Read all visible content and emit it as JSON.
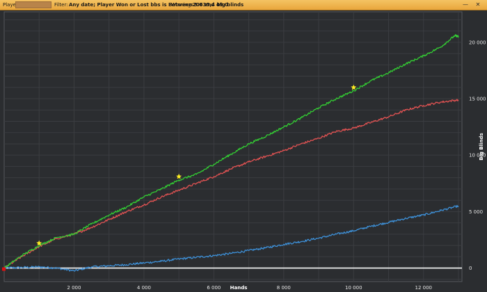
{
  "header": {
    "player_label": "Player",
    "filter_label": "Filter:",
    "filter_value": "Any date; Player Won or Lost bbs is Between 3.0 and 49.0",
    "winnings_label": "Winnings:",
    "winnings_value": "20635,4 big blinds",
    "minimize_icon": "minimize-icon",
    "close_icon": "close-icon"
  },
  "colors": {
    "background": "#2b2d30",
    "grid": "#3b3d41",
    "green": "#33cc33",
    "red": "#e05252",
    "blue": "#3d8fd6",
    "zero_line": "#ffffff",
    "star": "#ffee22",
    "start_marker": "#dd1111"
  },
  "chart_data": {
    "type": "line",
    "title": "",
    "xlabel": "Hands",
    "ylabel": "Big Blinds",
    "xlim": [
      0,
      13100
    ],
    "ylim": [
      -1200,
      22700
    ],
    "x_ticks": [
      2000,
      4000,
      6000,
      8000,
      10000,
      12000
    ],
    "x_tick_labels": [
      "2 000",
      "4 000",
      "6 000",
      "8 000",
      "10 000",
      "12 000"
    ],
    "y_ticks": [
      0,
      5000,
      10000,
      15000,
      20000
    ],
    "y_tick_labels": [
      "0",
      "5 000",
      "10 000",
      "15 000",
      "20 000"
    ],
    "grid": true,
    "legend": "none",
    "series": [
      {
        "color": "green",
        "x": [
          0,
          500,
          1000,
          1500,
          2000,
          2500,
          3000,
          3500,
          4000,
          4500,
          5000,
          5500,
          6000,
          6500,
          7000,
          7500,
          8000,
          8500,
          9000,
          9500,
          10000,
          10500,
          11000,
          11500,
          12000,
          12500,
          12900,
          13000
        ],
        "y": [
          0,
          1100,
          2000,
          2700,
          3000,
          3900,
          4700,
          5400,
          6300,
          7000,
          7800,
          8300,
          9200,
          10100,
          11000,
          11700,
          12500,
          13300,
          14200,
          15000,
          15700,
          16600,
          17300,
          18100,
          18800,
          19600,
          20600,
          20500
        ]
      },
      {
        "color": "red",
        "x": [
          0,
          500,
          1000,
          1500,
          2000,
          2500,
          3000,
          3500,
          4000,
          4500,
          5000,
          5500,
          6000,
          6500,
          7000,
          7500,
          8000,
          8500,
          9000,
          9500,
          10000,
          10500,
          11000,
          11500,
          12000,
          12500,
          13000
        ],
        "y": [
          0,
          1000,
          1900,
          2600,
          3000,
          3600,
          4300,
          5000,
          5600,
          6300,
          6900,
          7500,
          8100,
          8800,
          9400,
          9900,
          10400,
          11000,
          11500,
          12100,
          12400,
          12900,
          13400,
          14000,
          14400,
          14700,
          14900
        ]
      },
      {
        "color": "blue",
        "x": [
          0,
          500,
          1000,
          1500,
          2000,
          2500,
          3000,
          3500,
          4000,
          4500,
          5000,
          5500,
          6000,
          6500,
          7000,
          7500,
          8000,
          8500,
          9000,
          9500,
          10000,
          10500,
          11000,
          11500,
          12000,
          12500,
          13000
        ],
        "y": [
          0,
          50,
          100,
          0,
          -250,
          100,
          200,
          300,
          450,
          600,
          800,
          950,
          1100,
          1300,
          1550,
          1800,
          2100,
          2350,
          2650,
          3000,
          3300,
          3700,
          4050,
          4400,
          4700,
          5100,
          5500
        ]
      }
    ],
    "annotations": [
      {
        "type": "star",
        "x": 1000,
        "y": 2200
      },
      {
        "type": "star",
        "x": 5000,
        "y": 8100
      },
      {
        "type": "star",
        "x": 10000,
        "y": 16000
      },
      {
        "type": "start-marker",
        "x": 0,
        "y": 0
      }
    ]
  }
}
